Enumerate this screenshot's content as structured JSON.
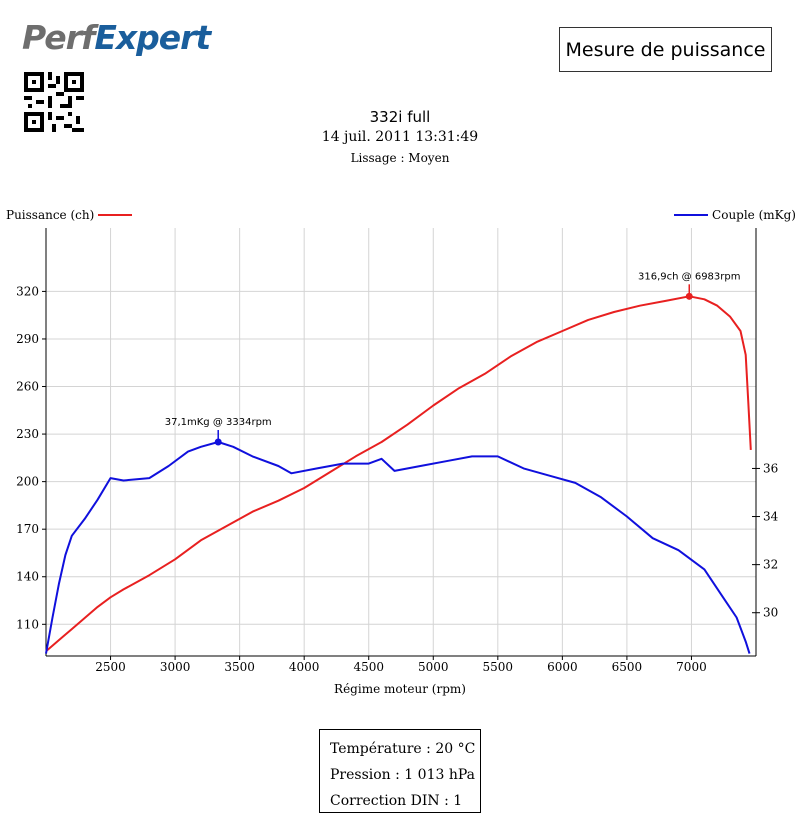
{
  "header": {
    "logo_part1": "Perf",
    "logo_part2": "Expert",
    "measure_label": "Mesure de puissance"
  },
  "run": {
    "title": "332i full",
    "date": "14 juil. 2011 13:31:49",
    "smoothing": "Lissage : Moyen"
  },
  "conditions": {
    "temperature": "Température : 20 °C",
    "pressure": "Pression : 1 013 hPa",
    "correction": "Correction DIN : 1"
  },
  "colors": {
    "power": "#e82020",
    "torque": "#1010dd",
    "grid": "#d4d4d4",
    "axis": "#000000"
  },
  "chart_data": {
    "type": "line",
    "xlabel": "Régime moteur (rpm)",
    "ylabel_left": "Puissance (ch)",
    "ylabel_right": "Couple (mKg)",
    "xlim": [
      2000,
      7500
    ],
    "ylim_left": [
      90,
      360
    ],
    "ylim_right": [
      28.2,
      46
    ],
    "x_ticks": [
      2500,
      3000,
      3500,
      4000,
      4500,
      5000,
      5500,
      6000,
      6500,
      7000
    ],
    "y_ticks_left": [
      110,
      140,
      170,
      200,
      230,
      260,
      290,
      320
    ],
    "y_ticks_right": [
      30,
      32,
      34,
      36
    ],
    "grid": true,
    "legend": "top",
    "series": [
      {
        "name": "Puissance (ch)",
        "axis": "left",
        "color": "#e82020",
        "x": [
          2000,
          2100,
          2200,
          2300,
          2400,
          2500,
          2600,
          2800,
          3000,
          3200,
          3400,
          3600,
          3800,
          4000,
          4200,
          4400,
          4600,
          4800,
          5000,
          5200,
          5400,
          5600,
          5800,
          6000,
          6200,
          6400,
          6600,
          6800,
          6983,
          7100,
          7200,
          7300,
          7380,
          7420,
          7440,
          7460
        ],
        "values": [
          93,
          100,
          107,
          114,
          121,
          127,
          132,
          141,
          151,
          163,
          172,
          181,
          188,
          196,
          206,
          216,
          225,
          236,
          248,
          259,
          268,
          279,
          288,
          295,
          302,
          307,
          311,
          314,
          316.9,
          315,
          311,
          304,
          295,
          280,
          250,
          220
        ]
      },
      {
        "name": "Couple (mKg)",
        "axis": "right",
        "color": "#1010dd",
        "x": [
          2000,
          2050,
          2100,
          2150,
          2200,
          2300,
          2400,
          2500,
          2600,
          2800,
          2950,
          3100,
          3200,
          3334,
          3450,
          3600,
          3800,
          3900,
          4100,
          4300,
          4500,
          4600,
          4700,
          4900,
          5100,
          5300,
          5500,
          5700,
          5900,
          6100,
          6300,
          6500,
          6700,
          6900,
          7100,
          7250,
          7350,
          7420,
          7450
        ],
        "values": [
          28.3,
          29.8,
          31.2,
          32.4,
          33.2,
          33.9,
          34.7,
          35.6,
          35.5,
          35.6,
          36.1,
          36.7,
          36.9,
          37.1,
          36.9,
          36.5,
          36.1,
          35.8,
          36.0,
          36.2,
          36.2,
          36.4,
          35.9,
          36.1,
          36.3,
          36.5,
          36.5,
          36.0,
          35.7,
          35.4,
          34.8,
          34.0,
          33.1,
          32.6,
          31.8,
          30.6,
          29.8,
          28.8,
          28.3
        ]
      }
    ],
    "annotations": [
      {
        "series": "Puissance (ch)",
        "x": 6983,
        "y": 316.9,
        "label": "316,9ch @ 6983rpm"
      },
      {
        "series": "Couple (mKg)",
        "x": 3334,
        "y": 37.1,
        "label": "37,1mKg @ 3334rpm"
      }
    ]
  }
}
